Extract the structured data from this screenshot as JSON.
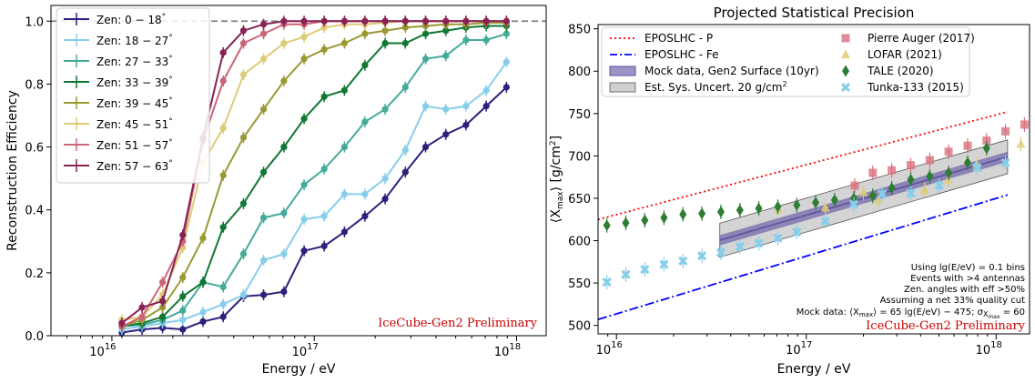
{
  "chart_data": [
    {
      "type": "line",
      "title": "",
      "xlabel": "Energy / eV",
      "ylabel": "Reconstruction Efficiency",
      "xscale": "log",
      "xlim": [
        5000000000000000.0,
        1.4e+18
      ],
      "ylim": [
        0.0,
        1.05
      ],
      "xticks": [
        {
          "v": 1e+16,
          "base": "10",
          "exp": "16"
        },
        {
          "v": 1e+17,
          "base": "10",
          "exp": "17"
        },
        {
          "v": 1e+18,
          "base": "10",
          "exp": "18"
        }
      ],
      "yticks": [
        "0.0",
        "0.2",
        "0.4",
        "0.6",
        "0.8",
        "1.0"
      ],
      "reference_line": {
        "y": 1.0,
        "style": "dashed",
        "color": "#808080"
      },
      "legend": "top-left",
      "annotation": "IceCube-Gen2 Preliminary",
      "x": [
        1.12e+16,
        1.41e+16,
        1.78e+16,
        2.24e+16,
        2.82e+16,
        3.55e+16,
        4.47e+16,
        5.62e+16,
        7.08e+16,
        8.91e+16,
        1.12e+17,
        1.41e+17,
        1.78e+17,
        2.24e+17,
        2.82e+17,
        3.55e+17,
        4.47e+17,
        5.62e+17,
        7.08e+17,
        8.91e+17
      ],
      "series": [
        {
          "name": "Zen: 0 − 18°",
          "color": "#2e1f7c",
          "values": [
            0.01,
            0.02,
            0.025,
            0.02,
            0.045,
            0.06,
            0.125,
            0.13,
            0.14,
            0.27,
            0.285,
            0.33,
            0.38,
            0.435,
            0.52,
            0.6,
            0.64,
            0.67,
            0.73,
            0.79
          ]
        },
        {
          "name": "Zen: 18 − 27°",
          "color": "#87ceeb",
          "values": [
            0.02,
            0.03,
            0.04,
            0.05,
            0.075,
            0.1,
            0.13,
            0.24,
            0.26,
            0.37,
            0.38,
            0.45,
            0.45,
            0.5,
            0.59,
            0.73,
            0.72,
            0.73,
            0.78,
            0.87
          ]
        },
        {
          "name": "Zen: 27 − 33°",
          "color": "#44aa99",
          "values": [
            0.03,
            0.035,
            0.05,
            0.08,
            0.17,
            0.155,
            0.26,
            0.375,
            0.39,
            0.48,
            0.53,
            0.6,
            0.68,
            0.72,
            0.79,
            0.88,
            0.89,
            0.94,
            0.94,
            0.96
          ]
        },
        {
          "name": "Zen: 33 − 39°",
          "color": "#117733",
          "values": [
            0.03,
            0.04,
            0.06,
            0.125,
            0.17,
            0.345,
            0.42,
            0.52,
            0.6,
            0.69,
            0.76,
            0.78,
            0.86,
            0.93,
            0.93,
            0.96,
            0.97,
            0.98,
            0.985,
            0.985
          ]
        },
        {
          "name": "Zen: 39 − 45°",
          "color": "#999933",
          "values": [
            0.03,
            0.05,
            0.09,
            0.185,
            0.31,
            0.51,
            0.63,
            0.72,
            0.81,
            0.88,
            0.91,
            0.93,
            0.96,
            0.97,
            0.98,
            0.985,
            0.99,
            0.99,
            0.995,
            0.995
          ]
        },
        {
          "name": "Zen: 45 − 51°",
          "color": "#ddcc77",
          "values": [
            0.05,
            0.06,
            0.13,
            0.28,
            0.55,
            0.66,
            0.83,
            0.88,
            0.93,
            0.95,
            0.98,
            0.99,
            0.99,
            0.995,
            1.0,
            1.0,
            1.0,
            1.0,
            1.0,
            1.0
          ]
        },
        {
          "name": "Zen: 51 − 57°",
          "color": "#cc6677",
          "values": [
            0.03,
            0.06,
            0.17,
            0.3,
            0.62,
            0.81,
            0.93,
            0.96,
            0.99,
            0.99,
            1.0,
            1.0,
            1.0,
            1.0,
            1.0,
            1.0,
            1.0,
            1.0,
            1.0,
            1.0
          ]
        },
        {
          "name": "Zen: 57 − 63°",
          "color": "#882255",
          "values": [
            0.04,
            0.09,
            0.11,
            0.32,
            0.63,
            0.9,
            0.97,
            0.99,
            1.0,
            1.0,
            1.0,
            1.0,
            1.0,
            1.0,
            1.0,
            1.0,
            1.0,
            1.0,
            1.0,
            1.0
          ]
        }
      ]
    },
    {
      "type": "scatter",
      "title": "Projected Statistical Precision",
      "xlabel": "Energy / eV",
      "ylabel": "⟨X",
      "ylabel_sub": "max",
      "ylabel_rest": "⟩ [g/cm",
      "ylabel_sup": "2",
      "ylabel_end": "]",
      "xscale": "log",
      "xlim": [
        8000000000000000.0,
        1.5e+18
      ],
      "ylim": [
        490,
        855
      ],
      "xticks": [
        {
          "v": 1e+16,
          "base": "10",
          "exp": "16"
        },
        {
          "v": 1e+17,
          "base": "10",
          "exp": "17"
        },
        {
          "v": 1e+18,
          "base": "10",
          "exp": "18"
        }
      ],
      "yticks": [
        "500",
        "550",
        "600",
        "650",
        "700",
        "750",
        "800",
        "850"
      ],
      "legend": "top (two columns)",
      "lines": [
        {
          "name": "EPOSLHC - P",
          "color": "#ff0000",
          "style": "dotted",
          "x": [
            8000000000000000.0,
            1.15e+18
          ],
          "y": [
            625,
            752
          ]
        },
        {
          "name": "EPOSLHC - Fe",
          "color": "#0000ff",
          "style": "dashdot",
          "x": [
            8000000000000000.0,
            1.15e+18
          ],
          "y": [
            507,
            654
          ]
        }
      ],
      "mock_data": {
        "name": "Mock data, Gen2 Surface (10yr)",
        "color": "#5a4fa0",
        "x": [
          3.5e+16,
          1.15e+18
        ],
        "y": [
          600.5,
          699
        ],
        "yerr": 6
      },
      "systematic_band": {
        "name": "Est. Sys. Uncert. 20 g/cm²",
        "color": "#b0b0b0",
        "x": [
          3.5e+16,
          1.15e+18
        ],
        "low": [
          580.5,
          679
        ],
        "high": [
          620.5,
          719
        ]
      },
      "point_series": [
        {
          "name": "Pierre Auger (2017)",
          "marker": "square",
          "color": "#d9707e",
          "x": [
            1.8e+17,
            2.24e+17,
            2.82e+17,
            3.55e+17,
            4.47e+17,
            5.62e+17,
            7.08e+17,
            8.91e+17,
            1.12e+18,
            1.41e+18
          ],
          "y": [
            665,
            680,
            683,
            689,
            695,
            705,
            712,
            718,
            729,
            737
          ]
        },
        {
          "name": "LOFAR (2021)",
          "marker": "triangle",
          "color": "#ddcc77",
          "x": [
            7.1e+16,
            1.26e+17,
            2e+17,
            2.4e+17,
            4.2e+17,
            5.6e+17,
            7.9e+17,
            1.35e+18
          ],
          "y": [
            637,
            639,
            657,
            648,
            660,
            672,
            690,
            714
          ]
        },
        {
          "name": "TALE (2020)",
          "marker": "diamond",
          "color": "#2e7d32",
          "x": [
            8900000000000000.0,
            1.12e+16,
            1.41e+16,
            1.78e+16,
            2.24e+16,
            2.82e+16,
            3.55e+16,
            4.47e+16,
            5.62e+16,
            7.08e+16,
            8.91e+16,
            1.12e+17,
            1.41e+17,
            1.78e+17,
            2.24e+17,
            2.82e+17,
            3.55e+17,
            4.47e+17,
            5.62e+17,
            7.08e+17,
            8.91e+17
          ],
          "y": [
            618,
            621,
            624,
            627,
            631,
            632,
            634,
            636,
            638,
            640,
            642,
            645,
            648,
            650,
            653,
            662,
            672,
            676,
            680,
            692,
            709
          ]
        },
        {
          "name": "Tunka-133 (2015)",
          "marker": "x",
          "color": "#87ceeb",
          "x": [
            8900000000000000.0,
            1.12e+16,
            1.41e+16,
            1.78e+16,
            2.24e+16,
            2.82e+16,
            3.55e+16,
            4.47e+16,
            5.62e+16,
            7.08e+16,
            8.91e+16,
            1.26e+17,
            1.78e+17,
            2.51e+17,
            3.55e+17,
            5.01e+17,
            7.94e+17,
            1.12e+18
          ],
          "y": [
            551,
            560,
            566,
            572,
            576,
            582,
            586,
            593,
            597,
            603,
            610,
            623,
            643,
            655,
            656,
            665,
            686,
            692
          ]
        }
      ],
      "notes": [
        "Using lg(E/eV) = 0.1 bins",
        "Events with >4 antennas",
        "Zen. angles with eff >50%",
        "Assuming a net 33% quality cut"
      ],
      "mock_formula": {
        "prefix": "Mock data: ⟨X",
        "sub1": "max",
        "mid": "⟩ = 65 lg(E/eV) − 475; σ",
        "sub2": "X",
        "sub3": "max",
        "suffix": " = 60"
      },
      "annotation": "IceCube-Gen2 Preliminary"
    }
  ]
}
